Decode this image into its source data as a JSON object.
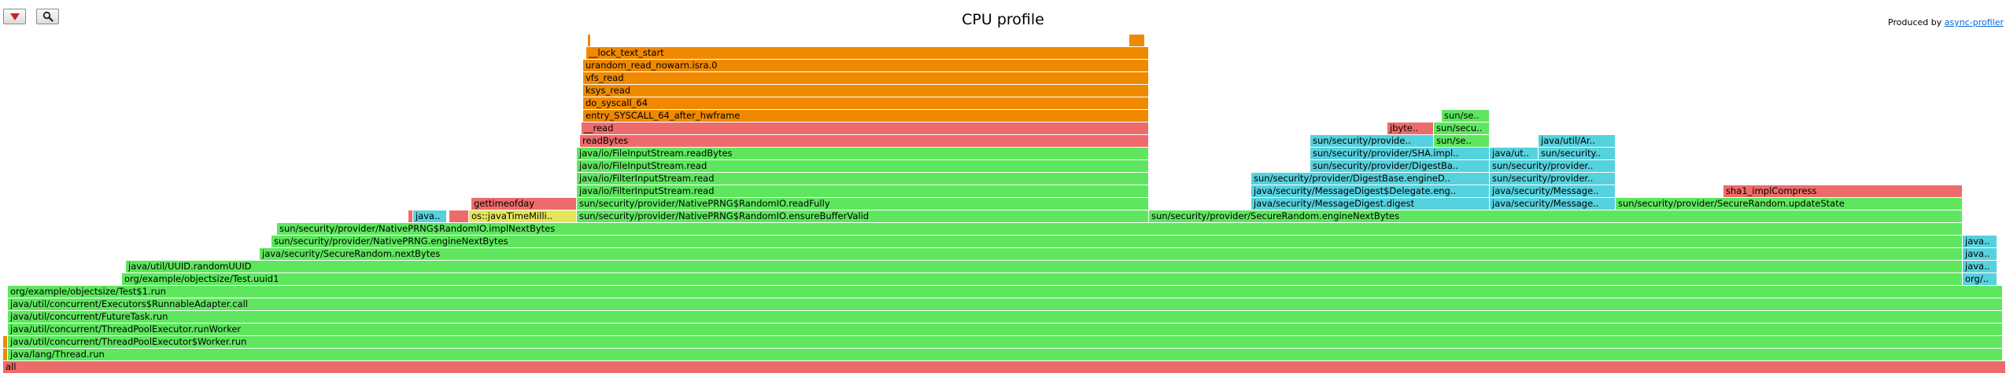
{
  "header": {
    "title": "CPU profile",
    "credit_prefix": "Produced by ",
    "credit_link": "async-profiler"
  },
  "toolbar": {
    "reverse_icon": "triangle-down-icon",
    "search_icon": "magnifier-icon"
  },
  "colors": {
    "java": "#5ee75e",
    "cpp": "#e5e55a",
    "native": "#ee6b6b",
    "kernel": "#ef8a00",
    "inlined": "#56d1de"
  },
  "profile_start": 0,
  "profile_end": 2549,
  "frames": [
    {
      "name": "all",
      "start": 4,
      "end": 2549,
      "level": 0,
      "type": "native"
    },
    {
      "name": "",
      "start": 4,
      "end": 10,
      "level": 1,
      "type": "kernel"
    },
    {
      "name": "java/lang/Thread.run",
      "start": 10,
      "end": 2545,
      "level": 1,
      "type": "java"
    },
    {
      "name": "",
      "start": 4,
      "end": 10,
      "level": 2,
      "type": "kernel"
    },
    {
      "name": "java/util/concurrent/ThreadPoolExecutor$Worker.run",
      "start": 10,
      "end": 2545,
      "level": 2,
      "type": "java"
    },
    {
      "name": "java/util/concurrent/ThreadPoolExecutor.runWorker",
      "start": 10,
      "end": 2545,
      "level": 3,
      "type": "java"
    },
    {
      "name": "java/util/concurrent/FutureTask.run",
      "start": 10,
      "end": 2545,
      "level": 4,
      "type": "java"
    },
    {
      "name": "java/util/concurrent/Executors$RunnableAdapter.call",
      "start": 10,
      "end": 2545,
      "level": 5,
      "type": "java"
    },
    {
      "name": "org/example/objectsize/Test$1.run",
      "start": 10,
      "end": 2545,
      "level": 6,
      "type": "java"
    },
    {
      "name": "org/example/objectsize/Test.uuid1",
      "start": 155,
      "end": 2494,
      "level": 7,
      "type": "java"
    },
    {
      "name": "org/..",
      "start": 2494,
      "end": 2538,
      "level": 7,
      "type": "inlined"
    },
    {
      "name": "java/util/UUID.randomUUID",
      "start": 160,
      "end": 2494,
      "level": 8,
      "type": "java"
    },
    {
      "name": "java..",
      "start": 2494,
      "end": 2538,
      "level": 8,
      "type": "inlined"
    },
    {
      "name": "java/security/SecureRandom.nextBytes",
      "start": 330,
      "end": 2494,
      "level": 9,
      "type": "java"
    },
    {
      "name": "java..",
      "start": 2494,
      "end": 2538,
      "level": 9,
      "type": "inlined"
    },
    {
      "name": "sun/security/provider/NativePRNG.engineNextBytes",
      "start": 345,
      "end": 2494,
      "level": 10,
      "type": "java"
    },
    {
      "name": "java..",
      "start": 2494,
      "end": 2538,
      "level": 10,
      "type": "inlined"
    },
    {
      "name": "sun/security/provider/NativePRNG$RandomIO.implNextBytes",
      "start": 352,
      "end": 2494,
      "level": 11,
      "type": "java"
    },
    {
      "name": "",
      "start": 519,
      "end": 525,
      "level": 12,
      "type": "native"
    },
    {
      "name": "java..",
      "start": 525,
      "end": 568,
      "level": 12,
      "type": "inlined"
    },
    {
      "name": "",
      "start": 571,
      "end": 596,
      "level": 12,
      "type": "native"
    },
    {
      "name": "os::javaTimeMilli..",
      "start": 596,
      "end": 733,
      "level": 12,
      "type": "cpp"
    },
    {
      "name": "sun/security/provider/NativePRNG$RandomIO.ensureBufferValid",
      "start": 733,
      "end": 1460,
      "level": 12,
      "type": "java"
    },
    {
      "name": "sun/security/provider/SecureRandom.engineNextBytes",
      "start": 1460,
      "end": 2494,
      "level": 12,
      "type": "java"
    },
    {
      "name": "gettimeofday",
      "start": 599,
      "end": 733,
      "level": 13,
      "type": "native"
    },
    {
      "name": "sun/security/provider/NativePRNG$RandomIO.readFully",
      "start": 733,
      "end": 1460,
      "level": 13,
      "type": "java"
    },
    {
      "name": "java/security/MessageDigest.digest",
      "start": 1590,
      "end": 1893,
      "level": 13,
      "type": "inlined"
    },
    {
      "name": "java/security/Message..",
      "start": 1893,
      "end": 2053,
      "level": 13,
      "type": "inlined"
    },
    {
      "name": "sun/security/provider/SecureRandom.updateState",
      "start": 2053,
      "end": 2494,
      "level": 13,
      "type": "java"
    },
    {
      "name": "java/io/FilterInputStream.read",
      "start": 733,
      "end": 1460,
      "level": 14,
      "type": "java"
    },
    {
      "name": "java/security/MessageDigest$Delegate.eng..",
      "start": 1590,
      "end": 1893,
      "level": 14,
      "type": "inlined"
    },
    {
      "name": "java/security/Message..",
      "start": 1893,
      "end": 2053,
      "level": 14,
      "type": "inlined"
    },
    {
      "name": "sha1_implCompress",
      "start": 2190,
      "end": 2494,
      "level": 14,
      "type": "native"
    },
    {
      "name": "java/io/FilterInputStream.read",
      "start": 733,
      "end": 1460,
      "level": 15,
      "type": "java"
    },
    {
      "name": "sun/security/provider/DigestBase.engineD..",
      "start": 1590,
      "end": 1893,
      "level": 15,
      "type": "inlined"
    },
    {
      "name": "sun/security/provider..",
      "start": 1893,
      "end": 2053,
      "level": 15,
      "type": "inlined"
    },
    {
      "name": "java/io/FileInputStream.read",
      "start": 733,
      "end": 1460,
      "level": 16,
      "type": "java"
    },
    {
      "name": "sun/security/provider/DigestBa..",
      "start": 1665,
      "end": 1893,
      "level": 16,
      "type": "inlined"
    },
    {
      "name": "sun/security/provider..",
      "start": 1893,
      "end": 2053,
      "level": 16,
      "type": "inlined"
    },
    {
      "name": "java/io/FileInputStream.readBytes",
      "start": 733,
      "end": 1460,
      "level": 17,
      "type": "java"
    },
    {
      "name": "sun/security/provider/SHA.impl..",
      "start": 1665,
      "end": 1893,
      "level": 17,
      "type": "inlined"
    },
    {
      "name": "java/ut..",
      "start": 1893,
      "end": 1955,
      "level": 17,
      "type": "inlined"
    },
    {
      "name": "sun/security..",
      "start": 1955,
      "end": 2053,
      "level": 17,
      "type": "inlined"
    },
    {
      "name": "readBytes",
      "start": 737,
      "end": 1460,
      "level": 18,
      "type": "native"
    },
    {
      "name": "sun/security/provide..",
      "start": 1665,
      "end": 1822,
      "level": 18,
      "type": "inlined"
    },
    {
      "name": "sun/se..",
      "start": 1822,
      "end": 1893,
      "level": 18,
      "type": "java"
    },
    {
      "name": "java/util/Ar..",
      "start": 1955,
      "end": 2053,
      "level": 18,
      "type": "inlined"
    },
    {
      "name": "__read",
      "start": 739,
      "end": 1460,
      "level": 19,
      "type": "native"
    },
    {
      "name": "jbyte..",
      "start": 1763,
      "end": 1822,
      "level": 19,
      "type": "native"
    },
    {
      "name": "sun/secu..",
      "start": 1822,
      "end": 1893,
      "level": 19,
      "type": "java"
    },
    {
      "name": "entry_SYSCALL_64_after_hwframe",
      "start": 741,
      "end": 1460,
      "level": 20,
      "type": "kernel"
    },
    {
      "name": "sun/se..",
      "start": 1832,
      "end": 1893,
      "level": 20,
      "type": "java"
    },
    {
      "name": "do_syscall_64",
      "start": 741,
      "end": 1460,
      "level": 21,
      "type": "kernel"
    },
    {
      "name": "ksys_read",
      "start": 741,
      "end": 1460,
      "level": 22,
      "type": "kernel"
    },
    {
      "name": "vfs_read",
      "start": 741,
      "end": 1460,
      "level": 23,
      "type": "kernel"
    },
    {
      "name": "urandom_read_nowarn.isra.0",
      "start": 741,
      "end": 1460,
      "level": 24,
      "type": "kernel"
    },
    {
      "name": "__lock_text_start",
      "start": 745,
      "end": 1460,
      "level": 25,
      "type": "kernel"
    },
    {
      "name": "",
      "start": 747,
      "end": 751,
      "level": 26,
      "type": "kernel"
    },
    {
      "name": "",
      "start": 1435,
      "end": 1455,
      "level": 26,
      "type": "kernel"
    }
  ]
}
